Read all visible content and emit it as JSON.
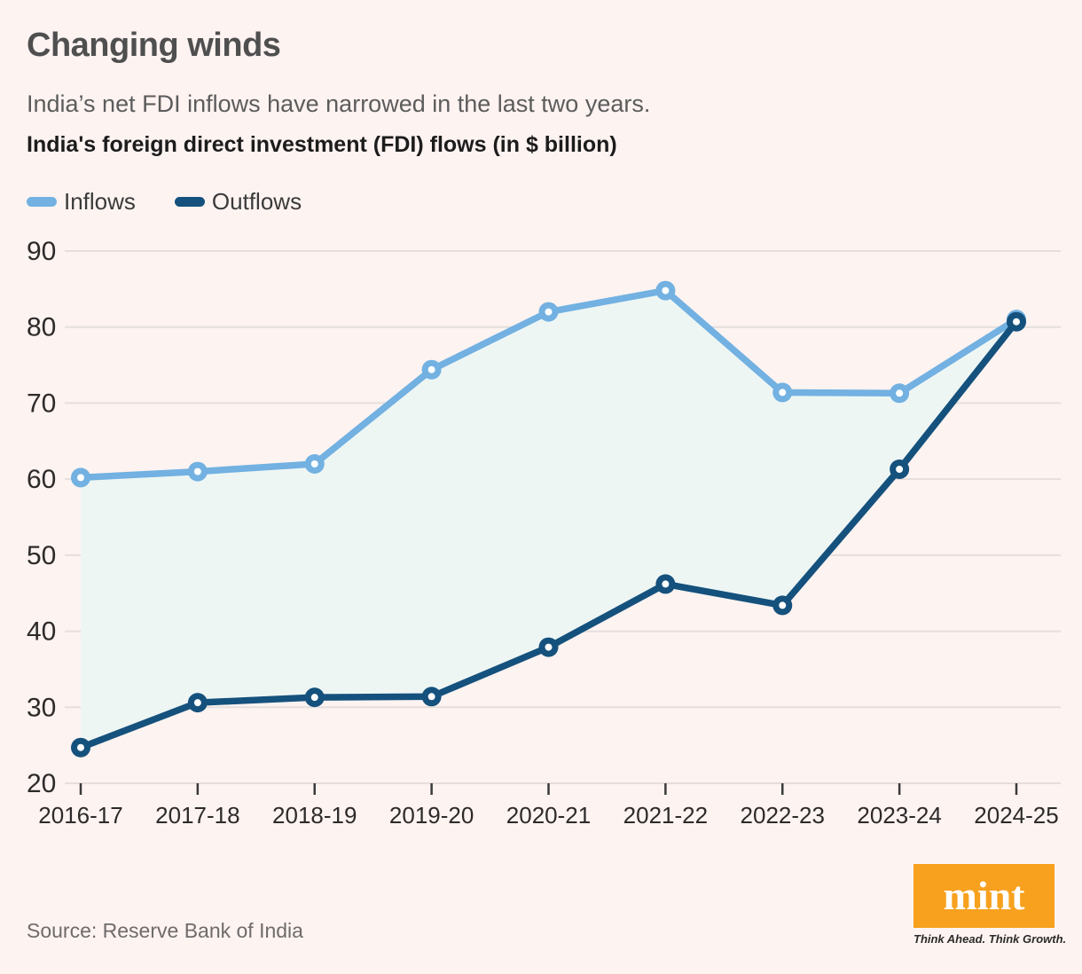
{
  "page": {
    "background_color": "#fdf3f1"
  },
  "header": {
    "title": "Changing winds",
    "subtitle": "India’s net FDI inflows have narrowed in the last two years.",
    "chart_title": "India's foreign direct investment (FDI) flows (in $ billion)"
  },
  "legend": {
    "items": [
      {
        "label": "Inflows",
        "color": "#72b1e1"
      },
      {
        "label": "Outflows",
        "color": "#15517d"
      }
    ]
  },
  "chart_data": {
    "type": "line",
    "title": "India's foreign direct investment (FDI) flows (in $ billion)",
    "categories": [
      "2016-17",
      "2017-18",
      "2018-19",
      "2019-20",
      "2020-21",
      "2021-22",
      "2022-23",
      "2023-24",
      "2024-25"
    ],
    "series": [
      {
        "name": "Inflows",
        "color": "#72b1e1",
        "values": [
          60.2,
          61.0,
          62.0,
          74.4,
          82.0,
          84.8,
          71.4,
          71.3,
          81.0
        ]
      },
      {
        "name": "Outflows",
        "color": "#15517d",
        "values": [
          24.7,
          30.6,
          31.3,
          31.4,
          37.9,
          46.2,
          43.4,
          61.3,
          80.7
        ]
      }
    ],
    "ylim": [
      20,
      90
    ],
    "ytick_step": 10,
    "yticks": [
      20,
      30,
      40,
      50,
      60,
      70,
      80,
      90
    ],
    "grid": true,
    "gridline_color": "#e4dfdd",
    "band_fill_between_series": true,
    "band_fill_color": "#eef6f4",
    "axis_text_color": "#2d2a2a",
    "legend_position": "top-left",
    "marker_style": "circle-with-white-center"
  },
  "footer": {
    "source": "Source: Reserve Bank of India",
    "logo_text": "mint",
    "logo_color": "#f7a11e",
    "logo_tagline": "Think Ahead. Think Growth."
  }
}
